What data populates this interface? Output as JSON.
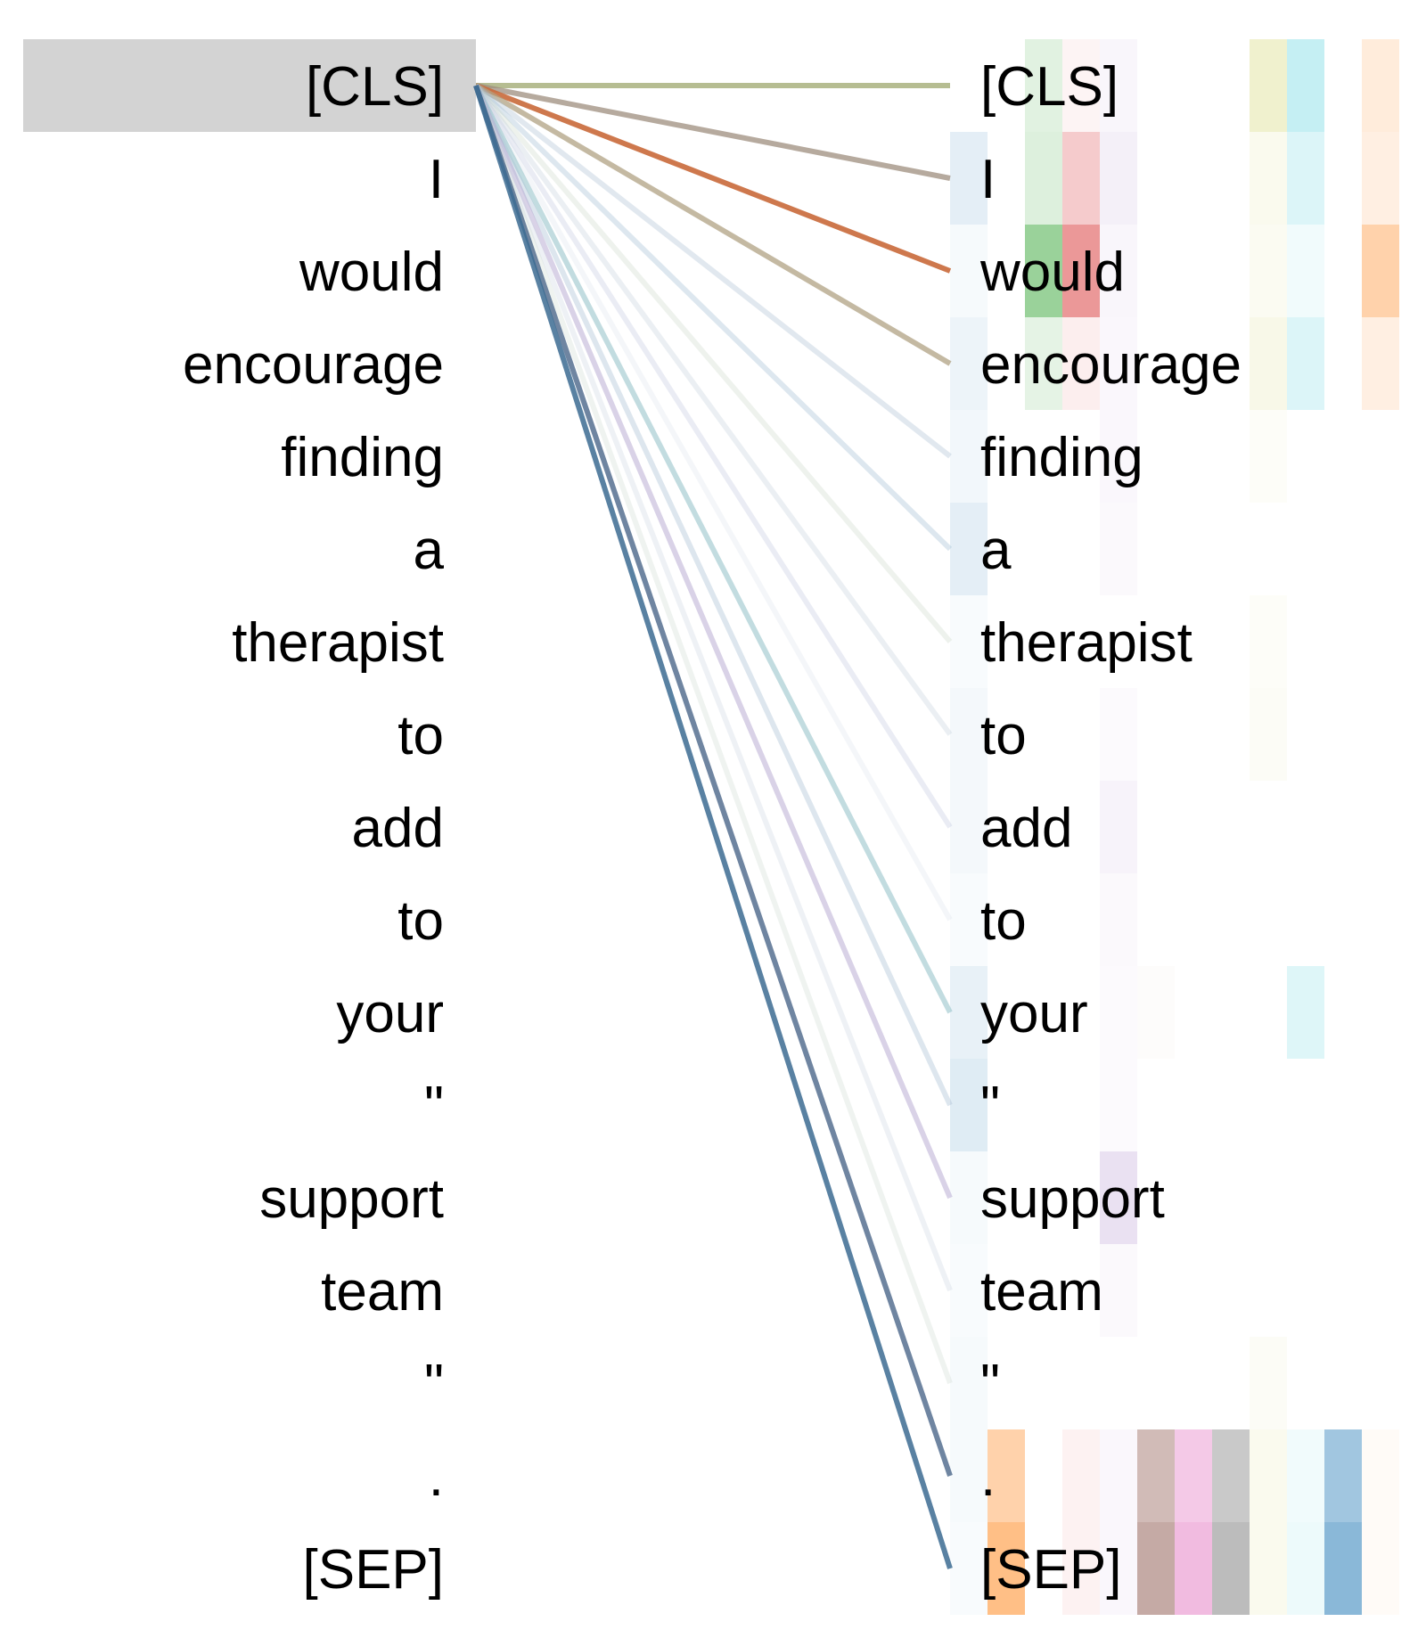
{
  "tokens": [
    "[CLS]",
    "I",
    "would",
    "encourage",
    "finding",
    "a",
    "therapist",
    "to",
    "add",
    "to",
    "your",
    "\"",
    "support",
    "team",
    "\"",
    ".",
    "[SEP]"
  ],
  "selected_token_index": 0,
  "selection_highlight_color": "#d3d3d3",
  "head_colors": [
    "#1f77b4",
    "#ff7f0e",
    "#2ca02c",
    "#d62728",
    "#9467bd",
    "#8c564b",
    "#e377c2",
    "#7f7f7f",
    "#bcbd22",
    "#17becf",
    "#1f77b4",
    "#ff7f0e"
  ],
  "heatmap_cells": [
    {
      "row": 0,
      "head": 2,
      "alpha": 0.14
    },
    {
      "row": 0,
      "head": 3,
      "alpha": 0.05
    },
    {
      "row": 0,
      "head": 4,
      "alpha": 0.06
    },
    {
      "row": 0,
      "head": 8,
      "alpha": 0.22
    },
    {
      "row": 0,
      "head": 9,
      "alpha": 0.25
    },
    {
      "row": 0,
      "head": 11,
      "alpha": 0.15
    },
    {
      "row": 1,
      "head": 0,
      "alpha": 0.12
    },
    {
      "row": 1,
      "head": 2,
      "alpha": 0.16
    },
    {
      "row": 1,
      "head": 3,
      "alpha": 0.24
    },
    {
      "row": 1,
      "head": 4,
      "alpha": 0.1
    },
    {
      "row": 1,
      "head": 8,
      "alpha": 0.08
    },
    {
      "row": 1,
      "head": 9,
      "alpha": 0.15
    },
    {
      "row": 1,
      "head": 11,
      "alpha": 0.12
    },
    {
      "row": 2,
      "head": 0,
      "alpha": 0.04
    },
    {
      "row": 2,
      "head": 2,
      "alpha": 0.48
    },
    {
      "row": 2,
      "head": 3,
      "alpha": 0.48
    },
    {
      "row": 2,
      "head": 4,
      "alpha": 0.06
    },
    {
      "row": 2,
      "head": 8,
      "alpha": 0.06
    },
    {
      "row": 2,
      "head": 9,
      "alpha": 0.06
    },
    {
      "row": 2,
      "head": 11,
      "alpha": 0.35
    },
    {
      "row": 3,
      "head": 0,
      "alpha": 0.08
    },
    {
      "row": 3,
      "head": 2,
      "alpha": 0.12
    },
    {
      "row": 3,
      "head": 3,
      "alpha": 0.08
    },
    {
      "row": 3,
      "head": 4,
      "alpha": 0.05
    },
    {
      "row": 3,
      "head": 8,
      "alpha": 0.1
    },
    {
      "row": 3,
      "head": 9,
      "alpha": 0.15
    },
    {
      "row": 3,
      "head": 11,
      "alpha": 0.12
    },
    {
      "row": 4,
      "head": 0,
      "alpha": 0.06
    },
    {
      "row": 4,
      "head": 4,
      "alpha": 0.05
    },
    {
      "row": 4,
      "head": 8,
      "alpha": 0.03
    },
    {
      "row": 5,
      "head": 0,
      "alpha": 0.12
    },
    {
      "row": 5,
      "head": 4,
      "alpha": 0.04
    },
    {
      "row": 6,
      "head": 0,
      "alpha": 0.03
    },
    {
      "row": 6,
      "head": 8,
      "alpha": 0.03
    },
    {
      "row": 7,
      "head": 0,
      "alpha": 0.05
    },
    {
      "row": 7,
      "head": 4,
      "alpha": 0.03
    },
    {
      "row": 7,
      "head": 8,
      "alpha": 0.04
    },
    {
      "row": 8,
      "head": 0,
      "alpha": 0.05
    },
    {
      "row": 8,
      "head": 4,
      "alpha": 0.08
    },
    {
      "row": 9,
      "head": 0,
      "alpha": 0.03
    },
    {
      "row": 9,
      "head": 4,
      "alpha": 0.04
    },
    {
      "row": 10,
      "head": 0,
      "alpha": 0.1
    },
    {
      "row": 10,
      "head": 4,
      "alpha": 0.03
    },
    {
      "row": 10,
      "head": 5,
      "alpha": 0.02
    },
    {
      "row": 10,
      "head": 9,
      "alpha": 0.14
    },
    {
      "row": 11,
      "head": 0,
      "alpha": 0.14
    },
    {
      "row": 11,
      "head": 4,
      "alpha": 0.03
    },
    {
      "row": 12,
      "head": 0,
      "alpha": 0.04
    },
    {
      "row": 12,
      "head": 4,
      "alpha": 0.2
    },
    {
      "row": 13,
      "head": 0,
      "alpha": 0.03
    },
    {
      "row": 13,
      "head": 4,
      "alpha": 0.04
    },
    {
      "row": 14,
      "head": 0,
      "alpha": 0.04
    },
    {
      "row": 14,
      "head": 8,
      "alpha": 0.04
    },
    {
      "row": 15,
      "head": 0,
      "alpha": 0.04
    },
    {
      "row": 15,
      "head": 1,
      "alpha": 0.35
    },
    {
      "row": 15,
      "head": 3,
      "alpha": 0.06
    },
    {
      "row": 15,
      "head": 4,
      "alpha": 0.05
    },
    {
      "row": 15,
      "head": 5,
      "alpha": 0.4
    },
    {
      "row": 15,
      "head": 6,
      "alpha": 0.4
    },
    {
      "row": 15,
      "head": 7,
      "alpha": 0.42
    },
    {
      "row": 15,
      "head": 8,
      "alpha": 0.08
    },
    {
      "row": 15,
      "head": 9,
      "alpha": 0.06
    },
    {
      "row": 15,
      "head": 10,
      "alpha": 0.42
    },
    {
      "row": 15,
      "head": 11,
      "alpha": 0.03
    },
    {
      "row": 16,
      "head": 0,
      "alpha": 0.03
    },
    {
      "row": 16,
      "head": 1,
      "alpha": 0.5
    },
    {
      "row": 16,
      "head": 3,
      "alpha": 0.06
    },
    {
      "row": 16,
      "head": 4,
      "alpha": 0.05
    },
    {
      "row": 16,
      "head": 5,
      "alpha": 0.5
    },
    {
      "row": 16,
      "head": 6,
      "alpha": 0.5
    },
    {
      "row": 16,
      "head": 7,
      "alpha": 0.52
    },
    {
      "row": 16,
      "head": 8,
      "alpha": 0.08
    },
    {
      "row": 16,
      "head": 9,
      "alpha": 0.08
    },
    {
      "row": 16,
      "head": 10,
      "alpha": 0.52
    },
    {
      "row": 16,
      "head": 11,
      "alpha": 0.03
    }
  ],
  "attention_lines": [
    {
      "to": 0,
      "color": "#a9b27f",
      "alpha": 0.85
    },
    {
      "to": 1,
      "color": "#9e8e7d",
      "alpha": 0.75
    },
    {
      "to": 2,
      "color": "#c9693a",
      "alpha": 0.9
    },
    {
      "to": 3,
      "color": "#b0a283",
      "alpha": 0.75
    },
    {
      "to": 4,
      "color": "#a9bcd0",
      "alpha": 0.35
    },
    {
      "to": 5,
      "color": "#9fb9d1",
      "alpha": 0.35
    },
    {
      "to": 6,
      "color": "#c7d3c5",
      "alpha": 0.3
    },
    {
      "to": 7,
      "color": "#bccbd8",
      "alpha": 0.3
    },
    {
      "to": 8,
      "color": "#b9c0dc",
      "alpha": 0.3
    },
    {
      "to": 9,
      "color": "#d5dde8",
      "alpha": 0.25
    },
    {
      "to": 10,
      "color": "#8fbfc7",
      "alpha": 0.55
    },
    {
      "to": 11,
      "color": "#a9c1d4",
      "alpha": 0.4
    },
    {
      "to": 12,
      "color": "#b3a6cf",
      "alpha": 0.5
    },
    {
      "to": 13,
      "color": "#c6d2df",
      "alpha": 0.3
    },
    {
      "to": 14,
      "color": "#c9d8cc",
      "alpha": 0.3
    },
    {
      "to": 15,
      "color": "#3f5c82",
      "alpha": 0.75
    },
    {
      "to": 16,
      "color": "#3c6b92",
      "alpha": 0.85
    }
  ]
}
